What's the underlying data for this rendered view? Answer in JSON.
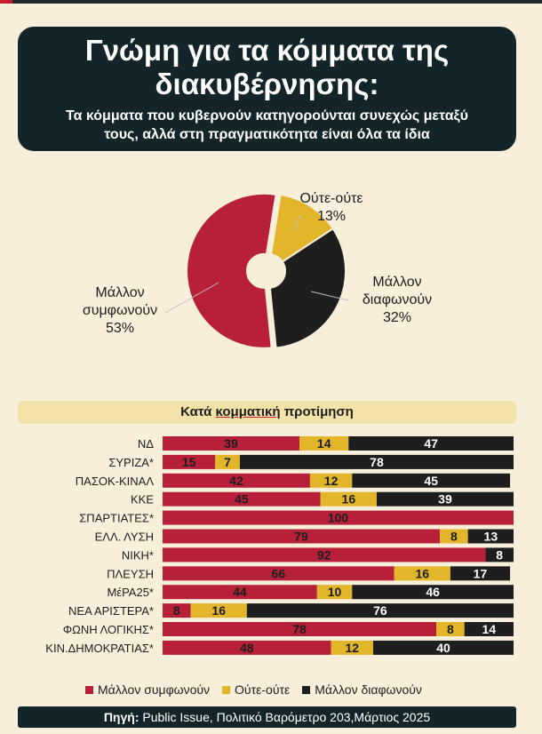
{
  "header": {
    "title_line1": "Γνώμη για τα κόμματα της",
    "title_line2": "διακυβέρνησης:",
    "subtitle_line1": "Τα κόμματα που κυβερνούν κατηγορούνται συνεχώς μεταξύ",
    "subtitle_line2": "τους, αλλά στη πραγματικότητα είναι όλα τα ίδια"
  },
  "colors": {
    "agree": "#b8203a",
    "neutral": "#e2b52a",
    "disagree": "#1e1e1e",
    "header_bg": "#132528"
  },
  "pie": {
    "slices": [
      {
        "key": "neutral",
        "label_line1": "Ούτε-ούτε",
        "label_line2": "",
        "pct_label": "13%",
        "value": 13
      },
      {
        "key": "disagree",
        "label_line1": "Μάλλον",
        "label_line2": "διαφωνούν",
        "pct_label": "32%",
        "value": 32
      },
      {
        "key": "agree",
        "label_line1": "Μάλλον",
        "label_line2": "συμφωνούν",
        "pct_label": "53%",
        "value": 53
      }
    ]
  },
  "section": {
    "prefix": "Κατά ",
    "underlined": "κομματική",
    "suffix": " προτίμηση"
  },
  "chart_data": {
    "type": "bar",
    "stacked": true,
    "orientation": "horizontal",
    "categories": [
      "ΝΔ",
      "ΣΥΡΙΖΑ*",
      "ΠΑΣΟΚ-ΚΙΝΑΛ",
      "ΚΚΕ",
      "ΣΠΑΡΤΙΑΤΕΣ*",
      "ΕΛΛ. ΛΥΣΗ",
      "ΝΙΚΗ*",
      "ΠΛΕΥΣΗ",
      "ΜέΡΑ25*",
      "ΝΕΑ ΑΡΙΣΤΕΡΑ*",
      "ΦΩΝΗ ΛΟΓΙΚΗΣ*",
      "ΚΙΝ.ΔΗΜΟΚΡΑΤΙΑΣ*"
    ],
    "series": [
      {
        "name": "Μάλλον συμφωνούν",
        "key": "agree",
        "values": [
          39,
          15,
          42,
          45,
          100,
          79,
          92,
          66,
          44,
          8,
          78,
          48
        ]
      },
      {
        "name": "Ούτε-ούτε",
        "key": "neutral",
        "values": [
          14,
          7,
          12,
          16,
          0,
          8,
          0,
          16,
          10,
          16,
          8,
          12
        ]
      },
      {
        "name": "Μάλλον διαφωνούν",
        "key": "disagree",
        "values": [
          47,
          78,
          45,
          39,
          0,
          13,
          8,
          17,
          46,
          76,
          14,
          40
        ]
      }
    ],
    "xlim": [
      0,
      100
    ],
    "legend_position": "bottom"
  },
  "source": {
    "label": "Πηγή:",
    "text": " Public Issue, Πολιτικό Βαρόμετρο 203,Μάρτιος 2025"
  }
}
